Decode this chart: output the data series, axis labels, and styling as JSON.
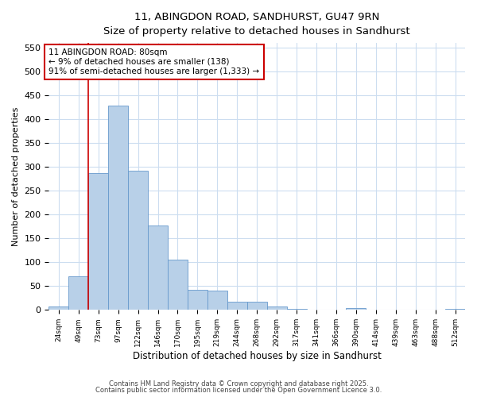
{
  "title_line1": "11, ABINGDON ROAD, SANDHURST, GU47 9RN",
  "title_line2": "Size of property relative to detached houses in Sandhurst",
  "xlabel": "Distribution of detached houses by size in Sandhurst",
  "ylabel": "Number of detached properties",
  "categories": [
    "24sqm",
    "49sqm",
    "73sqm",
    "97sqm",
    "122sqm",
    "146sqm",
    "170sqm",
    "195sqm",
    "219sqm",
    "244sqm",
    "268sqm",
    "292sqm",
    "317sqm",
    "341sqm",
    "366sqm",
    "390sqm",
    "414sqm",
    "439sqm",
    "463sqm",
    "488sqm",
    "512sqm"
  ],
  "values": [
    8,
    70,
    287,
    428,
    292,
    177,
    105,
    42,
    40,
    17,
    17,
    7,
    3,
    0,
    0,
    4,
    0,
    0,
    0,
    0,
    2
  ],
  "bar_color": "#b8d0e8",
  "bar_edge_color": "#6699cc",
  "vline_x": 1.5,
  "vline_color": "#cc0000",
  "annotation_text": "11 ABINGDON ROAD: 80sqm\n← 9% of detached houses are smaller (138)\n91% of semi-detached houses are larger (1,333) →",
  "annotation_box_color": "#cc0000",
  "ylim": [
    0,
    560
  ],
  "yticks": [
    0,
    50,
    100,
    150,
    200,
    250,
    300,
    350,
    400,
    450,
    500,
    550
  ],
  "grid_color": "#ccddf0",
  "background_color": "#ffffff",
  "footer_line1": "Contains HM Land Registry data © Crown copyright and database right 2025.",
  "footer_line2": "Contains public sector information licensed under the Open Government Licence 3.0."
}
